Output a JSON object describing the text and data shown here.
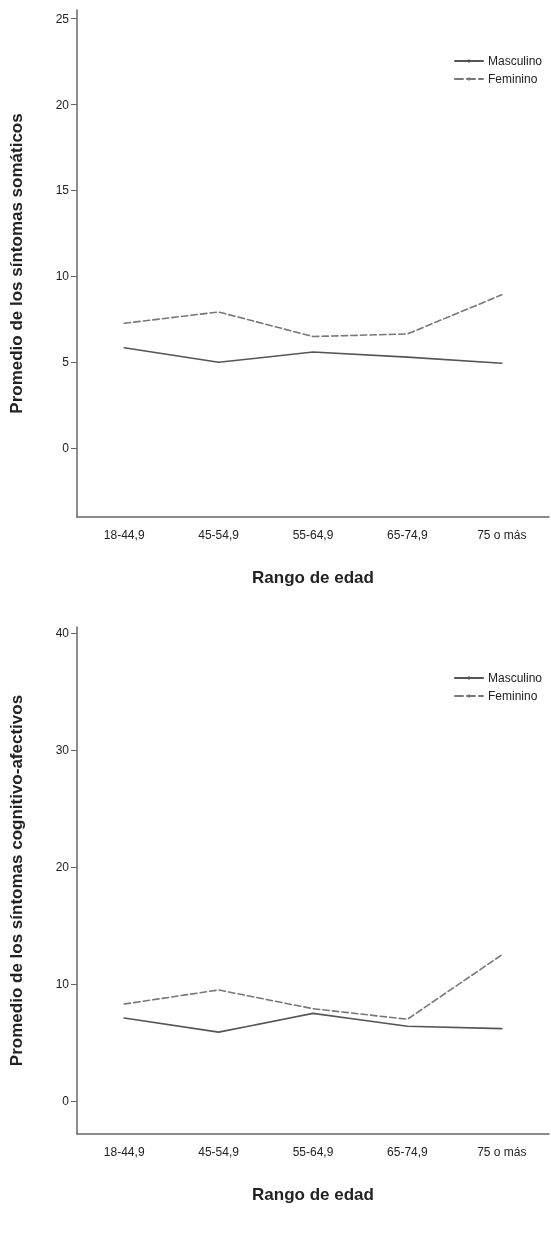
{
  "chart_data": [
    {
      "type": "line",
      "xlabel": "Rango de edad",
      "ylabel": "Promedio de los síntomas somáticos",
      "categories": [
        "18-44,9",
        "45-54,9",
        "55-64,9",
        "65-74,9",
        "75 o más"
      ],
      "series": [
        {
          "name": "Masculino",
          "color": "#555555",
          "line_style": "solid",
          "values": [
            5.85,
            5.0,
            5.6,
            5.3,
            4.95
          ]
        },
        {
          "name": "Feminino",
          "color": "#777777",
          "line_style": "dashed",
          "values": [
            7.27,
            7.93,
            6.5,
            6.65,
            8.93
          ]
        }
      ],
      "ylim": [
        -4,
        25.5
      ],
      "yticks": [
        0,
        5,
        10,
        15,
        20,
        25
      ],
      "grid": false,
      "legend": "top right",
      "marker": "none"
    },
    {
      "type": "line",
      "xlabel": "Rango de edad",
      "ylabel": "Promedio de los síntomas cognitivo-afectivos",
      "categories": [
        "18-44,9",
        "45-54,9",
        "55-64,9",
        "65-74,9",
        "75 o más"
      ],
      "series": [
        {
          "name": "Masculino",
          "color": "#555555",
          "line_style": "solid",
          "values": [
            7.1,
            5.9,
            7.5,
            6.4,
            6.2
          ]
        },
        {
          "name": "Feminino",
          "color": "#777777",
          "line_style": "dashed",
          "values": [
            8.3,
            9.5,
            7.9,
            7.0,
            12.5
          ]
        }
      ],
      "ylim": [
        -2.8,
        40.5
      ],
      "yticks": [
        0,
        10,
        20,
        30,
        40
      ],
      "grid": false,
      "legend": "top right",
      "marker": "none"
    }
  ]
}
